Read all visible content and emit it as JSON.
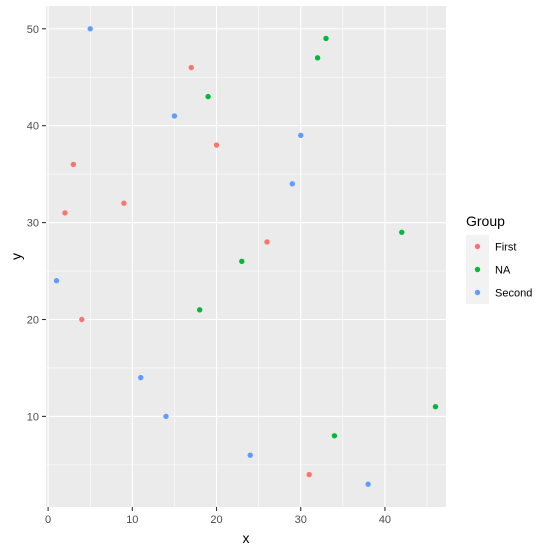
{
  "chart_data": {
    "type": "scatter",
    "title": "",
    "xlabel": "x",
    "ylabel": "y",
    "xlim": [
      -0.25,
      47.25
    ],
    "ylim": [
      0.65,
      52.35
    ],
    "x_ticks": [
      0,
      10,
      20,
      30,
      40
    ],
    "y_ticks": [
      10,
      20,
      30,
      40,
      50
    ],
    "grid": true,
    "legend": {
      "title": "Group",
      "position": "right"
    },
    "series": [
      {
        "name": "First",
        "color": "#F8766D",
        "points": [
          {
            "x": 17,
            "y": 46
          },
          {
            "x": 20,
            "y": 38
          },
          {
            "x": 3,
            "y": 36
          },
          {
            "x": 2,
            "y": 31
          },
          {
            "x": 9,
            "y": 32
          },
          {
            "x": 26,
            "y": 28
          },
          {
            "x": 4,
            "y": 20
          },
          {
            "x": 31,
            "y": 4
          }
        ]
      },
      {
        "name": "NA",
        "color": "#00BA38",
        "points": [
          {
            "x": 33,
            "y": 49
          },
          {
            "x": 32,
            "y": 47
          },
          {
            "x": 19,
            "y": 43
          },
          {
            "x": 42,
            "y": 29
          },
          {
            "x": 23,
            "y": 26
          },
          {
            "x": 18,
            "y": 21
          },
          {
            "x": 46,
            "y": 11
          },
          {
            "x": 34,
            "y": 8
          }
        ]
      },
      {
        "name": "Second",
        "color": "#619CFF",
        "points": [
          {
            "x": 5,
            "y": 50
          },
          {
            "x": 15,
            "y": 41
          },
          {
            "x": 30,
            "y": 39
          },
          {
            "x": 29,
            "y": 34
          },
          {
            "x": 1,
            "y": 24
          },
          {
            "x": 11,
            "y": 14
          },
          {
            "x": 14,
            "y": 10
          },
          {
            "x": 24,
            "y": 6
          },
          {
            "x": 38,
            "y": 3
          }
        ]
      }
    ]
  }
}
